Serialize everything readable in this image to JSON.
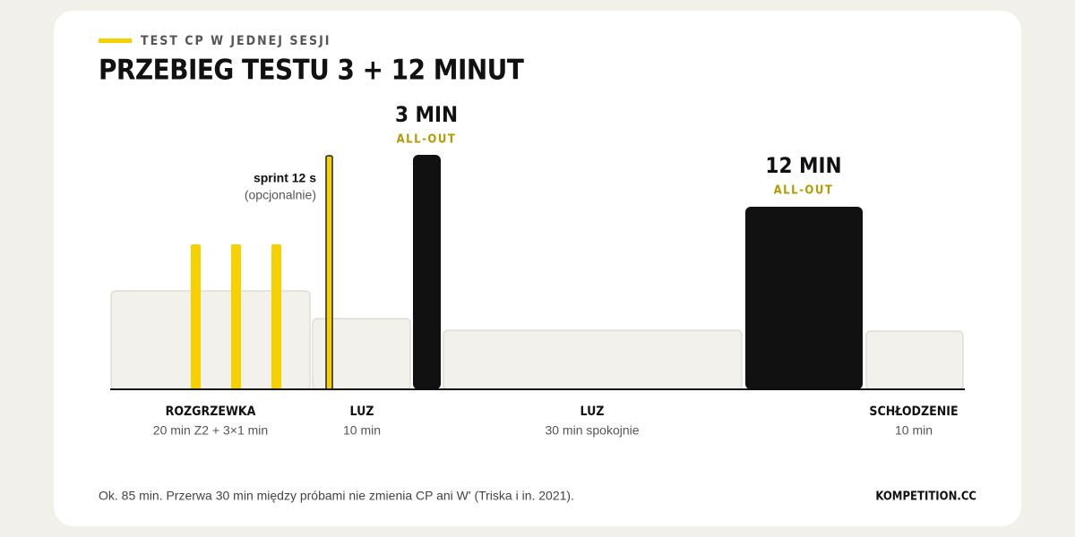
{
  "header": {
    "eyebrow": "TEST CP W JEDNEJ SESJI",
    "title": "PRZEBIEG TESTU 3 + 12 MINUT"
  },
  "annotations": [
    {
      "title": "sprint 12 s",
      "subtitle": "(opcjonalnie)"
    },
    {
      "title": "3 MIN",
      "subtitle": "ALL-OUT"
    },
    {
      "title": "12 MIN",
      "subtitle": "ALL-OUT"
    }
  ],
  "phases": [
    {
      "label": "ROZGRZEWKA",
      "detail": "20 min Z2 + 3×1 min"
    },
    {
      "label": "LUZ",
      "detail": "10 min"
    },
    {
      "label": "LUZ",
      "detail": "30 min spokojnie"
    },
    {
      "label": "SCHŁODZENIE",
      "detail": "10 min"
    }
  ],
  "footer": {
    "note": "Ok. 85 min. Przerwa 30 min między próbami nie zmienia CP ani W' (Triska i in. 2021).",
    "brand": "KOMPETITION.CC"
  }
}
